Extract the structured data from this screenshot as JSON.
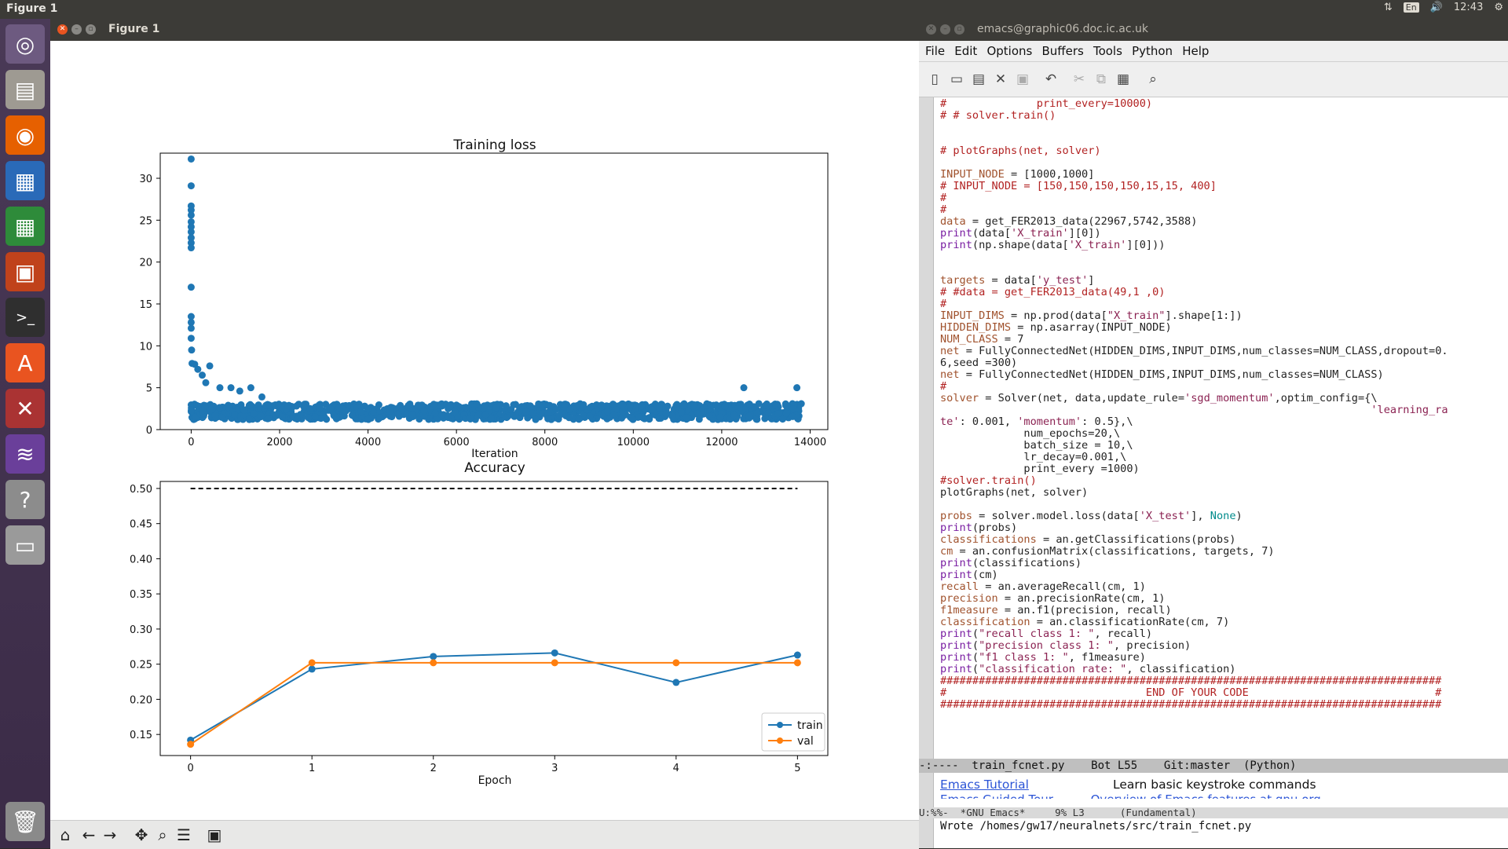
{
  "topbar": {
    "app_title": "Figure 1",
    "lang": "En",
    "clock": "12:43"
  },
  "launcher": {
    "items": [
      "Ubuntu dash",
      "Files",
      "Firefox",
      "LibreOffice Writer",
      "LibreOffice Calc",
      "LibreOffice Impress",
      "Terminal",
      "Ubuntu Software",
      "System Settings",
      "Emacs",
      "Help",
      "Disk",
      "Trash"
    ]
  },
  "figure_window": {
    "title": "Figure 1",
    "toolbar": [
      "home",
      "back",
      "forward",
      "pan",
      "zoom",
      "configure",
      "save"
    ]
  },
  "chart_data": [
    {
      "type": "scatter",
      "title": "Training loss",
      "xlabel": "Iteration",
      "ylabel": "",
      "xlim": [
        -700,
        14400
      ],
      "ylim": [
        0,
        33
      ],
      "xticks": [
        "0",
        "2000",
        "4000",
        "6000",
        "8000",
        "10000",
        "12000",
        "14000"
      ],
      "yticks": [
        "0",
        "5",
        "10",
        "15",
        "20",
        "25",
        "30"
      ],
      "grid": false,
      "color": "#1f77b4",
      "outlier_points": [
        [
          0,
          32.3
        ],
        [
          0,
          29.1
        ],
        [
          0,
          26.7
        ],
        [
          0,
          26.2
        ],
        [
          0,
          25.6
        ],
        [
          0,
          24.8
        ],
        [
          0,
          24.2
        ],
        [
          0,
          23.6
        ],
        [
          0,
          22.9
        ],
        [
          0,
          22.3
        ],
        [
          0,
          21.7
        ],
        [
          0,
          17.0
        ],
        [
          0,
          13.5
        ],
        [
          0,
          12.8
        ],
        [
          0,
          12.1
        ],
        [
          0,
          10.9
        ],
        [
          10,
          9.5
        ],
        [
          20,
          7.9
        ],
        [
          80,
          7.8
        ],
        [
          150,
          7.2
        ],
        [
          250,
          6.5
        ],
        [
          330,
          5.6
        ],
        [
          420,
          7.6
        ],
        [
          650,
          5.0
        ],
        [
          900,
          5.0
        ],
        [
          1100,
          4.6
        ],
        [
          1350,
          5.0
        ],
        [
          1600,
          3.9
        ],
        [
          12500,
          5.0
        ],
        [
          13700,
          5.0
        ]
      ],
      "band": {
        "from_iteration": 0,
        "to_iteration": 13800,
        "typical_min": 1.2,
        "typical_max": 3.1
      }
    },
    {
      "type": "line",
      "title": "Accuracy",
      "xlabel": "Epoch",
      "ylabel": "",
      "x": [
        0,
        1,
        2,
        3,
        4,
        5
      ],
      "xlim": [
        -0.25,
        5.25
      ],
      "ylim": [
        0.12,
        0.51
      ],
      "xticks": [
        "0",
        "1",
        "2",
        "3",
        "4",
        "5"
      ],
      "yticks": [
        "0.15",
        "0.20",
        "0.25",
        "0.30",
        "0.35",
        "0.40",
        "0.45",
        "0.50"
      ],
      "legend_position": "bottom-right",
      "grid": false,
      "series": [
        {
          "name": "train",
          "color": "#1f77b4",
          "values": [
            0.142,
            0.243,
            0.261,
            0.266,
            0.224,
            0.263
          ]
        },
        {
          "name": "val",
          "color": "#ff7f0e",
          "values": [
            0.136,
            0.252,
            0.252,
            0.252,
            0.252,
            0.252
          ]
        }
      ],
      "reference_line": {
        "y": 0.5,
        "style": "dashed",
        "color": "#000000"
      }
    }
  ],
  "emacs": {
    "title": "emacs@graphic06.doc.ic.ac.uk",
    "menu": [
      "File",
      "Edit",
      "Options",
      "Buffers",
      "Tools",
      "Python",
      "Help"
    ],
    "code_lines": [
      [
        [
          "c-comment",
          "#              print_every=10000)"
        ]
      ],
      [
        [
          "c-comment",
          "# # solver.train()"
        ]
      ],
      [
        [
          "",
          ""
        ]
      ],
      [
        [
          "",
          ""
        ]
      ],
      [
        [
          "c-comment",
          "# plotGraphs(net, solver)"
        ]
      ],
      [
        [
          "",
          ""
        ]
      ],
      [
        [
          "c-var",
          "INPUT_NODE"
        ],
        [
          "",
          " = [1000,1000]"
        ]
      ],
      [
        [
          "c-comment",
          "# INPUT_NODE = [150,150,150,150,15,15, 400]"
        ]
      ],
      [
        [
          "c-comment",
          "#"
        ]
      ],
      [
        [
          "c-comment",
          "#"
        ]
      ],
      [
        [
          "c-var",
          "data"
        ],
        [
          "",
          " = get_FER2013_data(22967,5742,3588)"
        ]
      ],
      [
        [
          "c-fn",
          "print"
        ],
        [
          "",
          "(data["
        ],
        [
          "c-str",
          "'X_train'"
        ],
        [
          "",
          "][0])"
        ]
      ],
      [
        [
          "c-fn",
          "print"
        ],
        [
          "",
          "(np.shape(data["
        ],
        [
          "c-str",
          "'X_train'"
        ],
        [
          "",
          "][0]))"
        ]
      ],
      [
        [
          "",
          ""
        ]
      ],
      [
        [
          "",
          ""
        ]
      ],
      [
        [
          "c-var",
          "targets"
        ],
        [
          "",
          " = data["
        ],
        [
          "c-str",
          "'y_test'"
        ],
        [
          "",
          "]"
        ]
      ],
      [
        [
          "c-comment",
          "# #data = get_FER2013_data(49,1 ,0)"
        ]
      ],
      [
        [
          "c-comment",
          "#"
        ]
      ],
      [
        [
          "c-var",
          "INPUT_DIMS"
        ],
        [
          "",
          " = np.prod(data["
        ],
        [
          "c-str",
          "\"X_train\""
        ],
        [
          "",
          "].shape[1:])"
        ]
      ],
      [
        [
          "c-var",
          "HIDDEN_DIMS"
        ],
        [
          "",
          " = np.asarray(INPUT_NODE)"
        ]
      ],
      [
        [
          "c-var",
          "NUM_CLASS"
        ],
        [
          "",
          " = 7"
        ]
      ],
      [
        [
          "c-var",
          "net"
        ],
        [
          "",
          " = FullyConnectedNet(HIDDEN_DIMS,INPUT_DIMS,num_classes=NUM_CLASS,dropout=0."
        ]
      ],
      [
        [
          "",
          "6,seed =300)"
        ]
      ],
      [
        [
          "c-var",
          "net"
        ],
        [
          "",
          " = FullyConnectedNet(HIDDEN_DIMS,INPUT_DIMS,num_classes=NUM_CLASS)"
        ]
      ],
      [
        [
          "c-comment",
          "#"
        ]
      ],
      [
        [
          "c-var",
          "solver"
        ],
        [
          "",
          " = Solver(net, data,update_rule="
        ],
        [
          "c-str",
          "'sgd_momentum'"
        ],
        [
          "",
          ",optim_config={\\"
        ]
      ],
      [
        [
          "",
          "                                                                   "
        ],
        [
          "c-str",
          "'learning_ra"
        ]
      ],
      [
        [
          "c-str",
          "te'"
        ],
        [
          "",
          ": 0.001, "
        ],
        [
          "c-str",
          "'momentum'"
        ],
        [
          "",
          ": 0.5},\\"
        ]
      ],
      [
        [
          "",
          "             num_epochs=20,\\"
        ]
      ],
      [
        [
          "",
          "             batch_size = 10,\\"
        ]
      ],
      [
        [
          "",
          "             lr_decay=0.001,\\"
        ]
      ],
      [
        [
          "",
          "             print_every =1000)"
        ]
      ],
      [
        [
          "c-comment",
          "#solver.train()"
        ]
      ],
      [
        [
          "",
          "plotGraphs(net, solver)"
        ]
      ],
      [
        [
          "",
          ""
        ]
      ],
      [
        [
          "c-var",
          "probs"
        ],
        [
          "",
          " = solver.model.loss(data["
        ],
        [
          "c-str",
          "'X_test'"
        ],
        [
          "",
          "], "
        ],
        [
          "c-const",
          "None"
        ],
        [
          "",
          ")"
        ]
      ],
      [
        [
          "c-fn",
          "print"
        ],
        [
          "",
          "(probs)"
        ]
      ],
      [
        [
          "c-var",
          "classifications"
        ],
        [
          "",
          " = an.getClassifications(probs)"
        ]
      ],
      [
        [
          "c-var",
          "cm"
        ],
        [
          "",
          " = an.confusionMatrix(classifications, targets, 7)"
        ]
      ],
      [
        [
          "c-fn",
          "print"
        ],
        [
          "",
          "(classifications)"
        ]
      ],
      [
        [
          "c-fn",
          "print"
        ],
        [
          "",
          "(cm)"
        ]
      ],
      [
        [
          "c-var",
          "recall"
        ],
        [
          "",
          " = an.averageRecall(cm, 1)"
        ]
      ],
      [
        [
          "c-var",
          "precision"
        ],
        [
          "",
          " = an.precisionRate(cm, 1)"
        ]
      ],
      [
        [
          "c-var",
          "f1measure"
        ],
        [
          "",
          " = an.f1(precision, recall)"
        ]
      ],
      [
        [
          "c-var",
          "classification"
        ],
        [
          "",
          " = an.classificationRate(cm, 7)"
        ]
      ],
      [
        [
          "c-fn",
          "print"
        ],
        [
          "",
          "("
        ],
        [
          "c-str",
          "\"recall class 1: \""
        ],
        [
          "",
          ", recall)"
        ]
      ],
      [
        [
          "c-fn",
          "print"
        ],
        [
          "",
          "("
        ],
        [
          "c-str",
          "\"precision class 1: \""
        ],
        [
          "",
          ", precision)"
        ]
      ],
      [
        [
          "c-fn",
          "print"
        ],
        [
          "",
          "("
        ],
        [
          "c-str",
          "\"f1 class 1: \""
        ],
        [
          "",
          ", f1measure)"
        ]
      ],
      [
        [
          "c-fn",
          "print"
        ],
        [
          "",
          "("
        ],
        [
          "c-str",
          "\"classification rate: \""
        ],
        [
          "",
          ", classification)"
        ]
      ],
      [
        [
          "c-comment",
          "##############################################################################"
        ]
      ],
      [
        [
          "c-comment",
          "#                               END OF YOUR CODE                             #"
        ]
      ],
      [
        [
          "c-comment",
          "##############################################################################"
        ]
      ]
    ],
    "modeline_main": "-:----  train_fcnet.py    Bot L55    Git:master  (Python)",
    "lower_link": "Emacs Tutorial",
    "lower_desc": "Learn basic keystroke commands",
    "lower_cut": "Emacs Guided Tour          Overview of Emacs features at gnu.org",
    "modeline_lower": "U:%%-  *GNU Emacs*     9% L3      (Fundamental)",
    "echo": "Wrote /homes/gw17/neuralnets/src/train_fcnet.py"
  }
}
